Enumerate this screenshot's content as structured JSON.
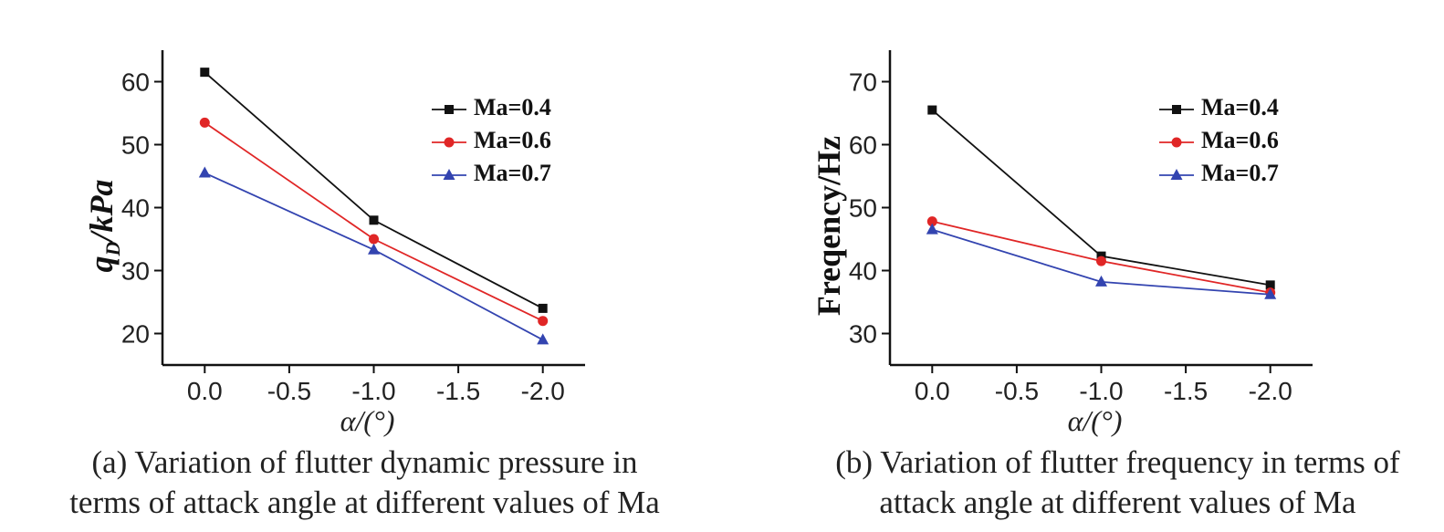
{
  "chart_data": [
    {
      "type": "line",
      "y_label": [
        "q",
        "D",
        "/kPa"
      ],
      "x_label": "α/(°)",
      "caption": [
        "(a) Variation of flutter dynamic pressure in",
        "terms of attack angle at different values of  Ma"
      ],
      "x": [
        0,
        -1,
        -2
      ],
      "xlim": [
        0.25,
        -2.25
      ],
      "xticks": [
        {
          "value": 0,
          "label": "0.0"
        },
        -0.5,
        {
          "value": -1,
          "label": "-1.0"
        },
        -1.5,
        {
          "value": -2,
          "label": "-2.0"
        }
      ],
      "ylim": [
        15,
        65
      ],
      "yticks": [
        20,
        30,
        40,
        50,
        60
      ],
      "legend": "upper right",
      "series": [
        {
          "name": "Ma=0.4",
          "color": "#111111",
          "marker": "square",
          "values": [
            61.5,
            38,
            24
          ]
        },
        {
          "name": "Ma=0.6",
          "color": "#e02626",
          "marker": "circle",
          "values": [
            53.5,
            35,
            22
          ]
        },
        {
          "name": "Ma=0.7",
          "color": "#3344b0",
          "marker": "triangle",
          "values": [
            45.5,
            33.3,
            19
          ]
        }
      ]
    },
    {
      "type": "line",
      "y_label": [
        "Freqency/Hz"
      ],
      "x_label": "α/(°)",
      "caption": [
        "(b) Variation of flutter frequency in terms of",
        "attack angle at different values of  Ma"
      ],
      "x": [
        0,
        -1,
        -2
      ],
      "xlim": [
        0.25,
        -2.25
      ],
      "xticks": [
        {
          "value": 0,
          "label": "0.0"
        },
        -0.5,
        {
          "value": -1,
          "label": "-1.0"
        },
        -1.5,
        {
          "value": -2,
          "label": "-2.0"
        }
      ],
      "ylim": [
        25,
        75
      ],
      "yticks": [
        30,
        40,
        50,
        60,
        70
      ],
      "legend": "upper right",
      "series": [
        {
          "name": "Ma=0.4",
          "color": "#111111",
          "marker": "square",
          "values": [
            65.5,
            42.3,
            37.7
          ]
        },
        {
          "name": "Ma=0.6",
          "color": "#e02626",
          "marker": "circle",
          "values": [
            47.8,
            41.5,
            36.5
          ]
        },
        {
          "name": "Ma=0.7",
          "color": "#3344b0",
          "marker": "triangle",
          "values": [
            46.5,
            38.2,
            36.2
          ]
        }
      ]
    }
  ]
}
